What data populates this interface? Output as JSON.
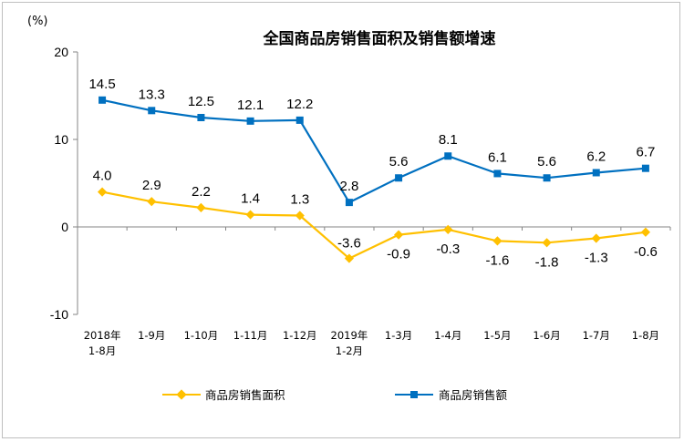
{
  "chart_data": {
    "type": "line",
    "title": "全国商品房销售面积及销售额增速",
    "ylabel": "(%)",
    "ylim": [
      -10,
      20
    ],
    "yticks": [
      -10,
      0,
      10,
      20
    ],
    "categories": [
      [
        "2018年",
        "1-8月"
      ],
      [
        "1-9月"
      ],
      [
        "1-10月"
      ],
      [
        "1-11月"
      ],
      [
        "1-12月"
      ],
      [
        "2019年",
        "1-2月"
      ],
      [
        "1-3月"
      ],
      [
        "1-4月"
      ],
      [
        "1-5月"
      ],
      [
        "1-6月"
      ],
      [
        "1-7月"
      ],
      [
        "1-8月"
      ]
    ],
    "series": [
      {
        "name": "商品房销售面积",
        "color": "#FFC000",
        "marker": "diamond",
        "values": [
          4.0,
          2.9,
          2.2,
          1.4,
          1.3,
          -3.6,
          -0.9,
          -0.3,
          -1.6,
          -1.8,
          -1.3,
          -0.6
        ],
        "labels": [
          "4.0",
          "2.9",
          "2.2",
          "1.4",
          "1.3",
          "-3.6",
          "-0.9",
          "-0.3",
          "-1.6",
          "-1.8",
          "-1.3",
          "-0.6"
        ]
      },
      {
        "name": "商品房销售额",
        "color": "#0070C0",
        "marker": "square",
        "values": [
          14.5,
          13.3,
          12.5,
          12.1,
          12.2,
          2.8,
          5.6,
          8.1,
          6.1,
          5.6,
          6.2,
          6.7
        ],
        "labels": [
          "14.5",
          "13.3",
          "12.5",
          "12.1",
          "12.2",
          "2.8",
          "5.6",
          "8.1",
          "6.1",
          "5.6",
          "6.2",
          "6.7"
        ]
      }
    ],
    "legend_position": "bottom",
    "grid": false
  }
}
